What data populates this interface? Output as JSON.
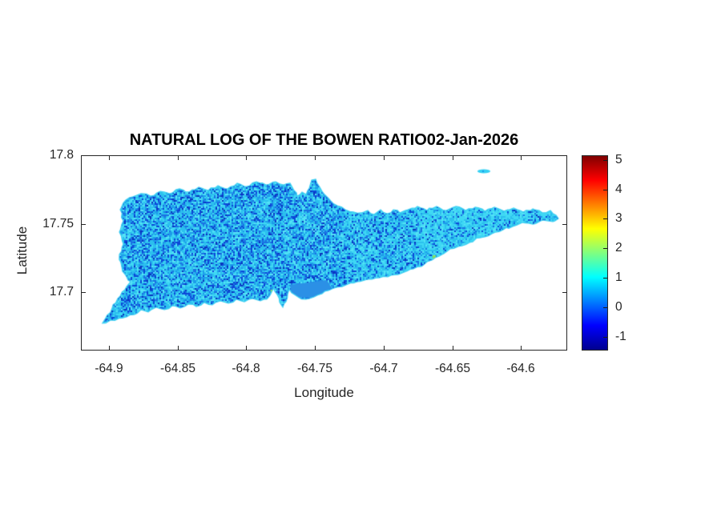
{
  "figure": {
    "title": "NATURAL LOG OF THE BOWEN RATIO02-Jan-2026",
    "xlabel": "Longitude",
    "ylabel": "Latitude",
    "background": "#FFFFFF",
    "axis_color": "#262626",
    "text_color": "#262626"
  },
  "chart_data": {
    "type": "heatmap",
    "title": "NATURAL LOG OF THE BOWEN RATIO02-Jan-2026",
    "xlabel": "Longitude",
    "ylabel": "Latitude",
    "xlim": [
      -64.9204,
      -64.5663
    ],
    "ylim": [
      17.6576,
      17.8
    ],
    "xticks": [
      -64.9,
      -64.85,
      -64.8,
      -64.75,
      -64.7,
      -64.65,
      -64.6
    ],
    "xtick_labels": [
      "-64.9",
      "-64.85",
      "-64.8",
      "-64.75",
      "-64.7",
      "-64.65",
      "-64.6"
    ],
    "yticks": [
      17.8,
      17.75,
      17.7
    ],
    "ytick_labels": [
      "17.8",
      "17.75",
      "17.7"
    ],
    "grid": false,
    "legend": false,
    "colorbar": {
      "position": "right",
      "ticks": [
        5,
        4,
        3,
        2,
        1,
        0,
        -1
      ],
      "tick_labels": [
        "5",
        "4",
        "3",
        "2",
        "1",
        "0",
        "-1"
      ],
      "cmin": -1.45,
      "cmax": 5.15,
      "colormap": "jet",
      "gradient_stops": [
        {
          "t": 0.0,
          "color": "#00008F"
        },
        {
          "t": 0.125,
          "color": "#0000FF"
        },
        {
          "t": 0.375,
          "color": "#00FFFF"
        },
        {
          "t": 0.625,
          "color": "#FFFF00"
        },
        {
          "t": 0.875,
          "color": "#FF0000"
        },
        {
          "t": 1.0,
          "color": "#800000"
        }
      ]
    },
    "speckle_palette": {
      "base": "#2CC0EE",
      "light": "#3FD8F4",
      "lighter": "#55E2F6",
      "mid": "#1D9BEA",
      "medium_blue": "#1B71E3",
      "dark": "#0C47D8",
      "very_dark": "#0A34BE"
    },
    "edge_color": "#3ECFF2",
    "smooth_patch_color": "#2B90E6",
    "islet_color": "#35D0F3",
    "island_outline": [
      [
        -64.8842,
        17.7078
      ],
      [
        -64.8871,
        17.7113
      ],
      [
        -64.8906,
        17.7183
      ],
      [
        -64.8924,
        17.7277
      ],
      [
        -64.8895,
        17.7352
      ],
      [
        -64.8924,
        17.744
      ],
      [
        -64.8895,
        17.7522
      ],
      [
        -64.8918,
        17.7603
      ],
      [
        -64.8877,
        17.7673
      ],
      [
        -64.8825,
        17.7697
      ],
      [
        -64.8766,
        17.772
      ],
      [
        -64.8696,
        17.7702
      ],
      [
        -64.8626,
        17.7737
      ],
      [
        -64.8556,
        17.772
      ],
      [
        -64.8486,
        17.7755
      ],
      [
        -64.8416,
        17.7732
      ],
      [
        -64.8346,
        17.7767
      ],
      [
        -64.8276,
        17.7743
      ],
      [
        -64.8206,
        17.7778
      ],
      [
        -64.8136,
        17.7755
      ],
      [
        -64.8066,
        17.7796
      ],
      [
        -64.7996,
        17.7772
      ],
      [
        -64.7926,
        17.7807
      ],
      [
        -64.7856,
        17.7784
      ],
      [
        -64.7786,
        17.7807
      ],
      [
        -64.7728,
        17.7784
      ],
      [
        -64.7681,
        17.7796
      ],
      [
        -64.7652,
        17.7743
      ],
      [
        -64.7629,
        17.7702
      ],
      [
        -64.7594,
        17.7732
      ],
      [
        -64.7564,
        17.7714
      ],
      [
        -64.7541,
        17.7761
      ],
      [
        -64.7524,
        17.7819
      ],
      [
        -64.7494,
        17.7825
      ],
      [
        -64.7465,
        17.7767
      ],
      [
        -64.743,
        17.7714
      ],
      [
        -64.7384,
        17.7667
      ],
      [
        -64.7337,
        17.7632
      ],
      [
        -64.7279,
        17.7603
      ],
      [
        -64.722,
        17.7586
      ],
      [
        -64.7162,
        17.758
      ],
      [
        -64.7115,
        17.7597
      ],
      [
        -64.7069,
        17.7568
      ],
      [
        -64.7022,
        17.7603
      ],
      [
        -64.6975,
        17.7574
      ],
      [
        -64.6929,
        17.7603
      ],
      [
        -64.6882,
        17.758
      ],
      [
        -64.6824,
        17.7603
      ],
      [
        -64.6754,
        17.7627
      ],
      [
        -64.6684,
        17.7597
      ],
      [
        -64.6614,
        17.7627
      ],
      [
        -64.6544,
        17.7597
      ],
      [
        -64.6473,
        17.7627
      ],
      [
        -64.6403,
        17.7597
      ],
      [
        -64.6333,
        17.7621
      ],
      [
        -64.6263,
        17.7592
      ],
      [
        -64.6193,
        17.7621
      ],
      [
        -64.6123,
        17.7592
      ],
      [
        -64.6053,
        17.7615
      ],
      [
        -64.5983,
        17.7586
      ],
      [
        -64.5913,
        17.7609
      ],
      [
        -64.5843,
        17.758
      ],
      [
        -64.5785,
        17.7597
      ],
      [
        -64.5744,
        17.7562
      ],
      [
        -64.5727,
        17.7539
      ],
      [
        -64.5767,
        17.7516
      ],
      [
        -64.5837,
        17.7527
      ],
      [
        -64.5913,
        17.7498
      ],
      [
        -64.5989,
        17.751
      ],
      [
        -64.6059,
        17.7481
      ],
      [
        -64.6129,
        17.7457
      ],
      [
        -64.6211,
        17.7428
      ],
      [
        -64.6292,
        17.7399
      ],
      [
        -64.6374,
        17.7364
      ],
      [
        -64.6456,
        17.7335
      ],
      [
        -64.6538,
        17.73
      ],
      [
        -64.6625,
        17.7253
      ],
      [
        -64.6701,
        17.7207
      ],
      [
        -64.6783,
        17.7172
      ],
      [
        -64.6864,
        17.7142
      ],
      [
        -64.6946,
        17.7125
      ],
      [
        -64.7028,
        17.7107
      ],
      [
        -64.711,
        17.7096
      ],
      [
        -64.7191,
        17.7078
      ],
      [
        -64.7273,
        17.7055
      ],
      [
        -64.7343,
        17.7037
      ],
      [
        -64.7401,
        17.7014
      ],
      [
        -64.7448,
        17.6991
      ],
      [
        -64.7506,
        17.6967
      ],
      [
        -64.7565,
        17.695
      ],
      [
        -64.7617,
        17.6962
      ],
      [
        -64.767,
        17.6997
      ],
      [
        -64.7687,
        17.7049
      ],
      [
        -64.7699,
        17.6985
      ],
      [
        -64.7711,
        17.6932
      ],
      [
        -64.7734,
        17.6892
      ],
      [
        -64.7757,
        17.6927
      ],
      [
        -64.7775,
        17.6985
      ],
      [
        -64.7798,
        17.7032
      ],
      [
        -64.7821,
        17.6991
      ],
      [
        -64.7851,
        17.695
      ],
      [
        -64.7897,
        17.6938
      ],
      [
        -64.7955,
        17.6956
      ],
      [
        -64.8014,
        17.6932
      ],
      [
        -64.8072,
        17.695
      ],
      [
        -64.8131,
        17.6921
      ],
      [
        -64.8189,
        17.6938
      ],
      [
        -64.8247,
        17.6909
      ],
      [
        -64.8306,
        17.6927
      ],
      [
        -64.8364,
        17.6897
      ],
      [
        -64.8422,
        17.6915
      ],
      [
        -64.8481,
        17.6886
      ],
      [
        -64.8539,
        17.6903
      ],
      [
        -64.8597,
        17.6874
      ],
      [
        -64.8656,
        17.6892
      ],
      [
        -64.8714,
        17.6857
      ],
      [
        -64.8767,
        17.6874
      ],
      [
        -64.8813,
        17.6839
      ],
      [
        -64.9047,
        17.6775
      ],
      [
        -64.8977,
        17.6886
      ],
      [
        -64.8918,
        17.6973
      ],
      [
        -64.8871,
        17.7043
      ]
    ],
    "smooth_patch": [
      [
        -64.7681,
        17.7055
      ],
      [
        -64.7413,
        17.709
      ],
      [
        -64.7378,
        17.7031
      ],
      [
        -64.7436,
        17.6997
      ],
      [
        -64.7518,
        17.6962
      ],
      [
        -64.7611,
        17.6962
      ],
      [
        -64.7675,
        17.7001
      ]
    ],
    "islet": {
      "lon": -64.627,
      "lat": 17.7883,
      "rlon": 0.0047,
      "rlat": 0.0015
    },
    "anomaly_specks": [
      {
        "lon": -64.781,
        "lat": 17.7008,
        "color": "#A6E43E"
      },
      {
        "lon": -64.6631,
        "lat": 17.7259,
        "color": "#8BE05A"
      }
    ]
  }
}
